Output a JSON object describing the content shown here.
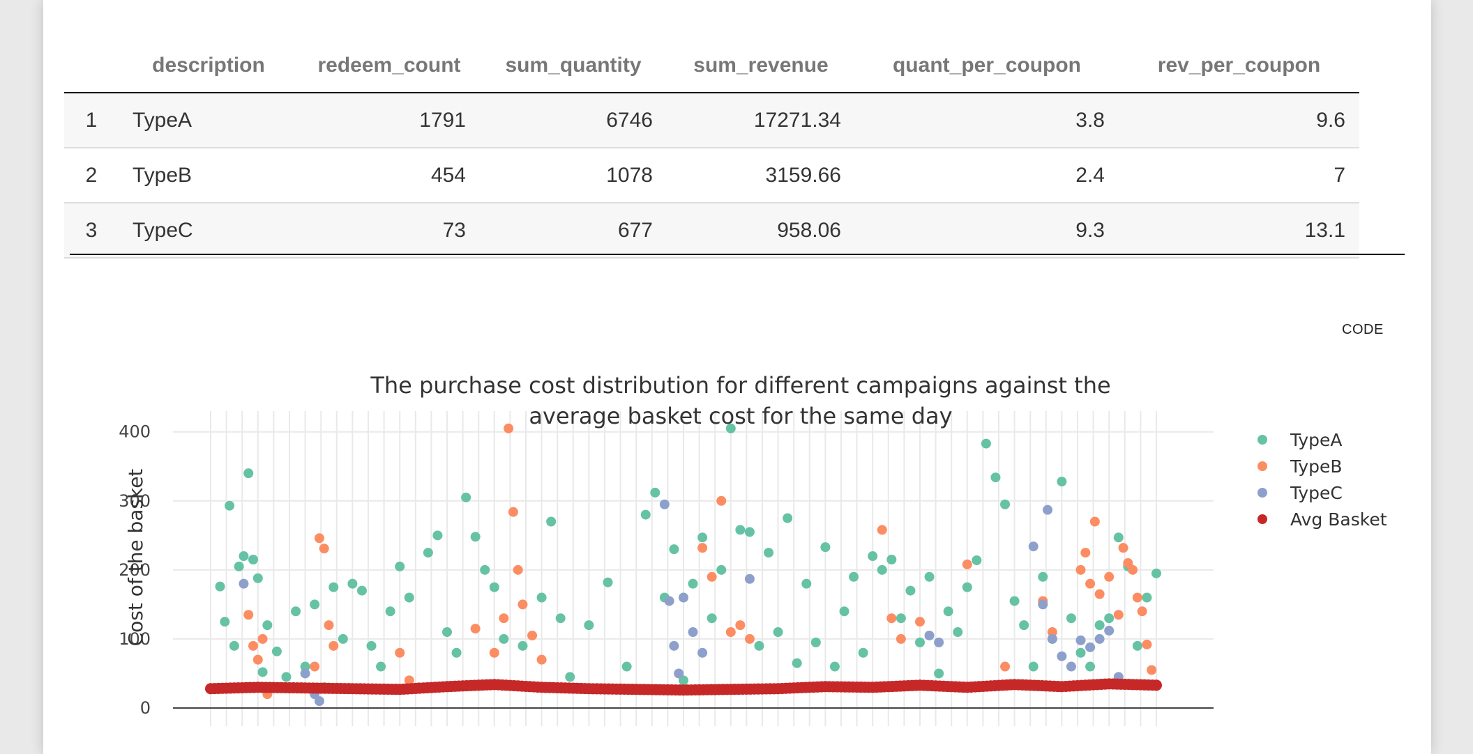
{
  "table": {
    "headers": [
      "",
      "description",
      "redeem_count",
      "sum_quantity",
      "sum_revenue",
      "quant_per_coupon",
      "rev_per_coupon"
    ],
    "rows": [
      [
        "1",
        "TypeA",
        "1791",
        "6746",
        "17271.34",
        "3.8",
        "9.6"
      ],
      [
        "2",
        "TypeB",
        "454",
        "1078",
        "3159.66",
        "2.4",
        "7"
      ],
      [
        "3",
        "TypeC",
        "73",
        "677",
        "958.06",
        "9.3",
        "13.1"
      ]
    ]
  },
  "code_button": "CODE",
  "chart_data": {
    "type": "scatter",
    "title": "The purchase cost distribution for different campaigns against the average basket cost for the same day",
    "title_lines": [
      "The purchase cost distribution for different campaigns against the",
      "average basket cost for the same day"
    ],
    "ylabel": "Cost of the basket",
    "xlabel": "",
    "ylim": [
      0,
      430
    ],
    "yticks": [
      0,
      100,
      200,
      300,
      400
    ],
    "grid": true,
    "legend_position": "right",
    "x_range": [
      0,
      100
    ],
    "colors": {
      "TypeA": "#66c2a5",
      "TypeB": "#fc8d62",
      "TypeC": "#8da0cb",
      "Avg Basket": "#c62828"
    },
    "series": [
      {
        "name": "TypeA",
        "color": "#66c2a5",
        "points": [
          [
            1,
            176
          ],
          [
            1.5,
            125
          ],
          [
            2,
            293
          ],
          [
            2.5,
            90
          ],
          [
            3,
            205
          ],
          [
            3.5,
            220
          ],
          [
            4,
            340
          ],
          [
            4.5,
            215
          ],
          [
            5,
            188
          ],
          [
            5.5,
            52
          ],
          [
            6,
            120
          ],
          [
            7,
            82
          ],
          [
            8,
            45
          ],
          [
            9,
            140
          ],
          [
            10,
            60
          ],
          [
            11,
            150
          ],
          [
            12,
            30
          ],
          [
            13,
            175
          ],
          [
            14,
            100
          ],
          [
            15,
            180
          ],
          [
            16,
            170
          ],
          [
            17,
            90
          ],
          [
            18,
            60
          ],
          [
            19,
            140
          ],
          [
            20,
            205
          ],
          [
            21,
            160
          ],
          [
            22,
            30
          ],
          [
            23,
            225
          ],
          [
            24,
            250
          ],
          [
            25,
            110
          ],
          [
            26,
            80
          ],
          [
            27,
            305
          ],
          [
            28,
            248
          ],
          [
            29,
            200
          ],
          [
            30,
            175
          ],
          [
            31,
            100
          ],
          [
            33,
            90
          ],
          [
            35,
            160
          ],
          [
            36,
            270
          ],
          [
            37,
            130
          ],
          [
            38,
            45
          ],
          [
            40,
            120
          ],
          [
            42,
            182
          ],
          [
            44,
            60
          ],
          [
            46,
            280
          ],
          [
            47,
            312
          ],
          [
            48,
            160
          ],
          [
            49,
            230
          ],
          [
            50,
            40
          ],
          [
            51,
            180
          ],
          [
            52,
            247
          ],
          [
            53,
            130
          ],
          [
            54,
            200
          ],
          [
            55,
            405
          ],
          [
            56,
            258
          ],
          [
            57,
            255
          ],
          [
            58,
            90
          ],
          [
            59,
            225
          ],
          [
            60,
            110
          ],
          [
            61,
            275
          ],
          [
            62,
            65
          ],
          [
            63,
            180
          ],
          [
            64,
            95
          ],
          [
            65,
            233
          ],
          [
            66,
            60
          ],
          [
            67,
            140
          ],
          [
            68,
            190
          ],
          [
            69,
            80
          ],
          [
            70,
            220
          ],
          [
            71,
            200
          ],
          [
            72,
            215
          ],
          [
            73,
            130
          ],
          [
            74,
            170
          ],
          [
            75,
            95
          ],
          [
            76,
            190
          ],
          [
            77,
            50
          ],
          [
            78,
            140
          ],
          [
            79,
            110
          ],
          [
            80,
            175
          ],
          [
            81,
            214
          ],
          [
            82,
            383
          ],
          [
            83,
            334
          ],
          [
            84,
            295
          ],
          [
            85,
            155
          ],
          [
            86,
            120
          ],
          [
            87,
            60
          ],
          [
            88,
            190
          ],
          [
            89,
            100
          ],
          [
            90,
            328
          ],
          [
            91,
            130
          ],
          [
            92,
            80
          ],
          [
            93,
            60
          ],
          [
            94,
            120
          ],
          [
            95,
            130
          ],
          [
            96,
            247
          ],
          [
            97,
            205
          ],
          [
            98,
            90
          ],
          [
            99,
            160
          ],
          [
            100,
            195
          ]
        ]
      },
      {
        "name": "TypeB",
        "color": "#fc8d62",
        "points": [
          [
            4,
            135
          ],
          [
            4.5,
            90
          ],
          [
            5,
            70
          ],
          [
            5.5,
            100
          ],
          [
            6,
            20
          ],
          [
            11,
            60
          ],
          [
            11.5,
            246
          ],
          [
            12,
            231
          ],
          [
            12.5,
            120
          ],
          [
            13,
            90
          ],
          [
            20,
            80
          ],
          [
            21,
            40
          ],
          [
            28,
            115
          ],
          [
            30,
            80
          ],
          [
            31,
            130
          ],
          [
            31.5,
            405
          ],
          [
            32,
            284
          ],
          [
            32.5,
            200
          ],
          [
            33,
            150
          ],
          [
            34,
            105
          ],
          [
            35,
            70
          ],
          [
            52,
            232
          ],
          [
            53,
            190
          ],
          [
            54,
            300
          ],
          [
            55,
            110
          ],
          [
            56,
            120
          ],
          [
            57,
            100
          ],
          [
            71,
            258
          ],
          [
            72,
            130
          ],
          [
            73,
            100
          ],
          [
            75,
            125
          ],
          [
            80,
            208
          ],
          [
            84,
            60
          ],
          [
            88,
            155
          ],
          [
            89,
            110
          ],
          [
            92,
            200
          ],
          [
            92.5,
            225
          ],
          [
            93,
            180
          ],
          [
            93.5,
            270
          ],
          [
            94,
            165
          ],
          [
            95,
            190
          ],
          [
            96,
            135
          ],
          [
            96.5,
            232
          ],
          [
            97,
            210
          ],
          [
            97.5,
            200
          ],
          [
            98,
            160
          ],
          [
            98.5,
            140
          ],
          [
            99,
            92
          ],
          [
            99.5,
            55
          ]
        ]
      },
      {
        "name": "TypeC",
        "color": "#8da0cb",
        "points": [
          [
            3.5,
            180
          ],
          [
            10,
            50
          ],
          [
            11,
            20
          ],
          [
            11.5,
            10
          ],
          [
            48,
            295
          ],
          [
            48.5,
            155
          ],
          [
            49,
            90
          ],
          [
            49.5,
            50
          ],
          [
            50,
            160
          ],
          [
            51,
            110
          ],
          [
            52,
            80
          ],
          [
            57,
            187
          ],
          [
            76,
            105
          ],
          [
            77,
            95
          ],
          [
            87,
            234
          ],
          [
            88,
            150
          ],
          [
            88.5,
            287
          ],
          [
            89,
            100
          ],
          [
            90,
            75
          ],
          [
            91,
            60
          ],
          [
            92,
            98
          ],
          [
            93,
            88
          ],
          [
            94,
            100
          ],
          [
            95,
            112
          ],
          [
            96,
            45
          ]
        ]
      },
      {
        "name": "Avg Basket",
        "color": "#c62828",
        "points": [
          [
            0,
            28
          ],
          [
            5,
            30
          ],
          [
            10,
            29
          ],
          [
            15,
            28
          ],
          [
            20,
            27
          ],
          [
            25,
            31
          ],
          [
            30,
            34
          ],
          [
            35,
            30
          ],
          [
            40,
            28
          ],
          [
            45,
            27
          ],
          [
            50,
            26
          ],
          [
            55,
            27
          ],
          [
            60,
            28
          ],
          [
            65,
            31
          ],
          [
            70,
            30
          ],
          [
            75,
            33
          ],
          [
            80,
            30
          ],
          [
            85,
            34
          ],
          [
            90,
            31
          ],
          [
            95,
            35
          ],
          [
            100,
            33
          ]
        ]
      }
    ]
  },
  "legend": [
    "TypeA",
    "TypeB",
    "TypeC",
    "Avg Basket"
  ]
}
